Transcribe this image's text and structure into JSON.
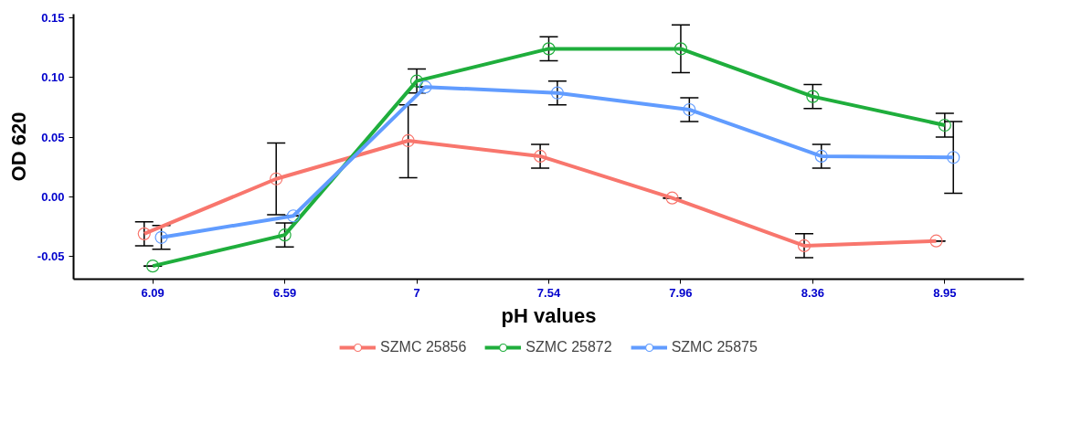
{
  "chart_data": {
    "type": "line",
    "xlabel": "pH values",
    "ylabel": "OD 620",
    "categories": [
      "6.09",
      "6.59",
      "7",
      "7.54",
      "7.96",
      "8.36",
      "8.95"
    ],
    "ylim": [
      -0.069,
      0.153
    ],
    "yticks": [
      {
        "value": -0.05,
        "label": "-0.05"
      },
      {
        "value": 0,
        "label": "0.00"
      },
      {
        "value": 0.05,
        "label": "0.05"
      },
      {
        "value": 0.1,
        "label": "0.10"
      },
      {
        "value": 0.15,
        "label": "0.15"
      }
    ],
    "grid": false,
    "legend": "bottom",
    "marker": "circle",
    "line_style": "solid",
    "series": [
      {
        "name": "SZMC 25856",
        "color": "#f8766d",
        "values": [
          -0.031,
          0.015,
          0.047,
          0.034,
          -0.001,
          -0.041,
          -0.037
        ],
        "errors": [
          [
            -0.041,
            -0.021
          ],
          [
            -0.015,
            0.045
          ],
          [
            0.016,
            0.077
          ],
          [
            0.024,
            0.044
          ],
          [
            -0.001,
            -0.001
          ],
          [
            -0.051,
            -0.031
          ],
          [
            -0.037,
            -0.037
          ]
        ]
      },
      {
        "name": "SZMC 25872",
        "color": "#1fae3c",
        "values": [
          -0.058,
          -0.032,
          0.097,
          0.124,
          0.124,
          0.084,
          0.06
        ],
        "errors": [
          [
            -0.058,
            -0.058
          ],
          [
            -0.042,
            -0.022
          ],
          [
            0.087,
            0.107
          ],
          [
            0.114,
            0.134
          ],
          [
            0.104,
            0.144
          ],
          [
            0.074,
            0.094
          ],
          [
            0.05,
            0.07
          ]
        ]
      },
      {
        "name": "SZMC 25875",
        "color": "#619cff",
        "values": [
          -0.034,
          -0.016,
          0.092,
          0.087,
          0.073,
          0.034,
          0.033
        ],
        "errors": [
          [
            -0.044,
            -0.024
          ],
          [
            -0.016,
            -0.016
          ],
          [
            0.092,
            0.092
          ],
          [
            0.077,
            0.097
          ],
          [
            0.063,
            0.083
          ],
          [
            0.024,
            0.044
          ],
          [
            0.003,
            0.063
          ]
        ]
      }
    ]
  }
}
